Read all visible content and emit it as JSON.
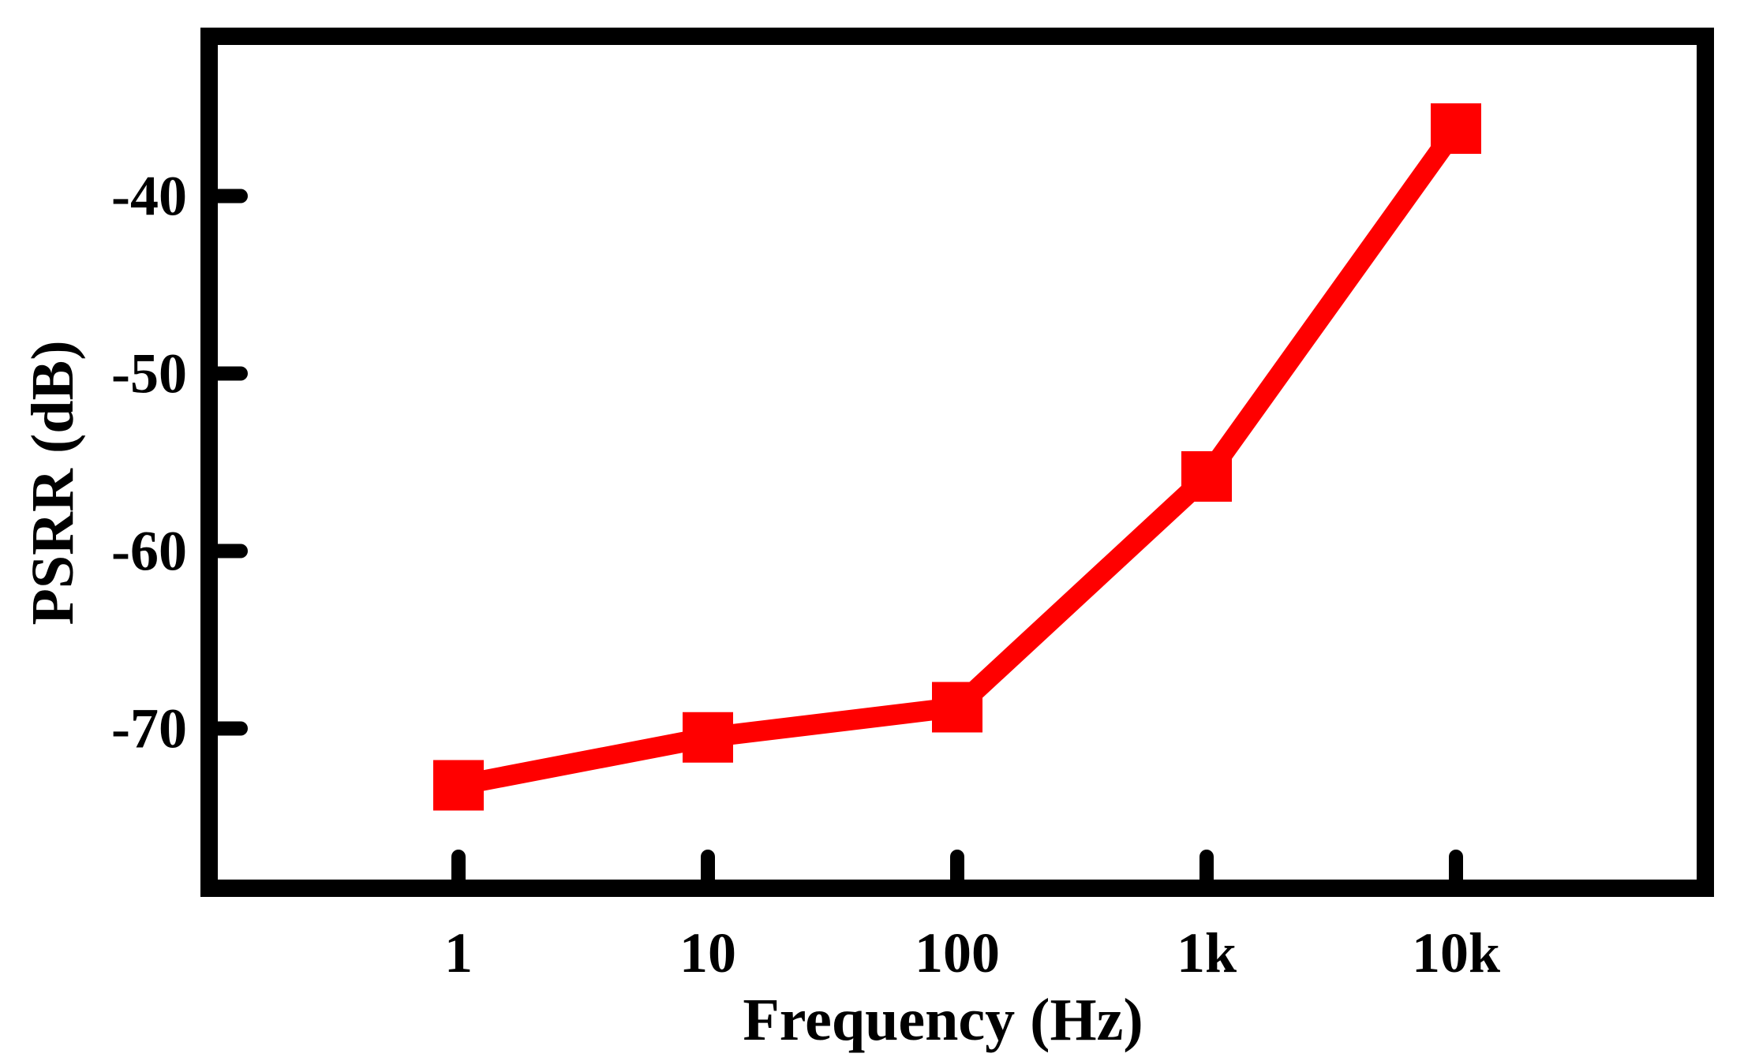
{
  "chart_data": {
    "type": "line",
    "title": "",
    "xlabel": "Frequency (Hz)",
    "ylabel": "PSRR (dB)",
    "x_scale": "log",
    "x_categories": [
      "1",
      "10",
      "100",
      "1k",
      "10k"
    ],
    "x": [
      1,
      10,
      100,
      1000,
      10000
    ],
    "xlim": [
      0.1,
      100000
    ],
    "ylim": [
      -79,
      -31
    ],
    "y_ticks": [
      -40,
      -50,
      -60,
      -70
    ],
    "y_tick_labels": [
      "-40",
      "-50",
      "-60",
      "-70"
    ],
    "grid": false,
    "legend": "none",
    "series": [
      {
        "values": [
          -73.2,
          -70.5,
          -68.8,
          -55.8,
          -36.2
        ],
        "color": "#ff0000",
        "marker": "square"
      }
    ]
  },
  "colors": {
    "frame": "#000000",
    "series": "#ff0000",
    "background": "#ffffff"
  }
}
